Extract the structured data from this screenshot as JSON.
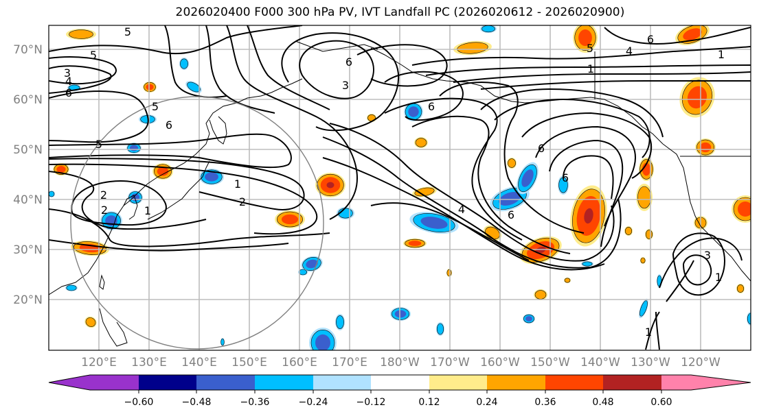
{
  "chart_data": {
    "type": "heatmap",
    "title": "2026020400 F000 300 hPa PV, IVT Landfall PC (2026020612 - 2026020900)",
    "projection": "PlateCarree map, North Pacific",
    "lat_range": [
      10,
      75
    ],
    "lon_range": [
      110,
      250
    ],
    "lat_ticks": [
      "70°N",
      "60°N",
      "50°N",
      "40°N",
      "30°N",
      "20°N"
    ],
    "lon_ticks": [
      "120°E",
      "130°E",
      "140°E",
      "150°E",
      "160°E",
      "170°E",
      "180°W",
      "170°W",
      "160°W",
      "150°W",
      "140°W",
      "130°W",
      "120°W"
    ],
    "grid": true,
    "shaded_field": "IVT Landfall PC (correlation-like)",
    "contour_field": "300 hPa PV (PVU)",
    "contour_labels": [
      "5",
      "5",
      "3",
      "4",
      "6",
      "5",
      "6",
      "5",
      "1",
      "2",
      "2",
      "1",
      "2",
      "6",
      "3",
      "6",
      "4",
      "6",
      "6",
      "6",
      "1",
      "5",
      "4",
      "6",
      "1",
      "3",
      "1",
      "1"
    ],
    "colorbar": {
      "orientation": "horizontal",
      "extend": "both",
      "ticks": [
        "−0.60",
        "−0.48",
        "−0.36",
        "−0.24",
        "−0.12",
        "0.12",
        "0.24",
        "0.36",
        "0.48",
        "0.60"
      ],
      "levels": [
        -0.6,
        -0.48,
        -0.36,
        -0.24,
        -0.12,
        0.12,
        0.24,
        0.36,
        0.48,
        0.6
      ],
      "colors": [
        "#9932CC",
        "#00008B",
        "#3A5FCD",
        "#00BFFF",
        "#B0E2FF",
        "#FFFFFF",
        "#FFEC8B",
        "#FFA500",
        "#FF4500",
        "#B22222",
        "#FF82AB"
      ]
    },
    "annotation": "grey circle centred near 140°E 35°N (radius ~25°)"
  }
}
